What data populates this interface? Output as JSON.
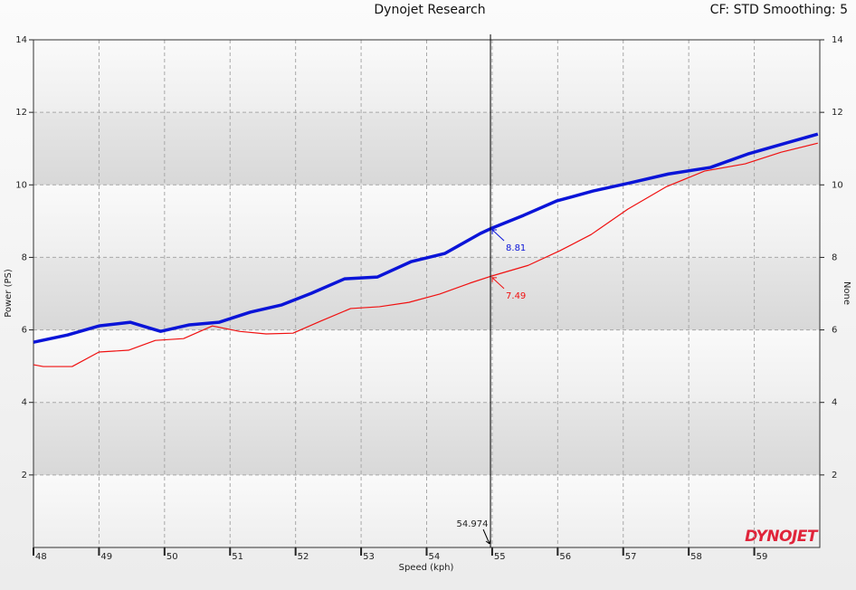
{
  "chart_data": {
    "type": "line",
    "title": "Dynojet Research",
    "header_right": "CF: STD Smoothing: 5",
    "x_label": "Speed (kph)",
    "y_label": "Power (PS)",
    "y2_label": "None",
    "logo": "DYNOJET",
    "xlim": [
      48,
      60
    ],
    "xticks": [
      48,
      49,
      50,
      51,
      52,
      53,
      54,
      55,
      56,
      57,
      58,
      59
    ],
    "ylim": [
      0,
      14
    ],
    "yticks": [
      2,
      4,
      6,
      8,
      10,
      12,
      14
    ],
    "y2lim": [
      0,
      14
    ],
    "y2ticks": [
      2,
      4,
      6,
      8,
      10,
      12,
      14
    ],
    "grid": true,
    "series": [
      {
        "color": "#0a14d8",
        "width": 3.5,
        "x": [
          48.0,
          48.52,
          49.0,
          49.48,
          49.94,
          50.38,
          50.83,
          51.31,
          51.79,
          52.24,
          52.75,
          53.25,
          53.76,
          54.28,
          54.82,
          55.0,
          55.48,
          55.99,
          56.54,
          57.09,
          57.69,
          58.33,
          58.9,
          59.48,
          59.97
        ],
        "values": [
          5.66,
          5.86,
          6.11,
          6.21,
          5.96,
          6.14,
          6.21,
          6.49,
          6.69,
          7.01,
          7.41,
          7.46,
          7.88,
          8.11,
          8.66,
          8.81,
          9.16,
          9.56,
          9.83,
          10.05,
          10.3,
          10.48,
          10.85,
          11.15,
          11.4
        ]
      },
      {
        "color": "#f01010",
        "width": 1.2,
        "x": [
          48.0,
          48.15,
          48.59,
          49.0,
          49.45,
          49.86,
          50.29,
          50.73,
          51.14,
          51.55,
          51.96,
          52.38,
          52.84,
          53.28,
          53.73,
          54.2,
          54.66,
          55.0,
          55.55,
          56.03,
          56.51,
          57.07,
          57.66,
          58.24,
          58.86,
          59.41,
          59.97
        ],
        "values": [
          5.04,
          4.99,
          4.99,
          5.39,
          5.44,
          5.71,
          5.76,
          6.11,
          5.96,
          5.89,
          5.91,
          6.24,
          6.59,
          6.64,
          6.76,
          6.99,
          7.29,
          7.49,
          7.78,
          8.18,
          8.63,
          9.33,
          9.95,
          10.38,
          10.58,
          10.9,
          11.15
        ]
      }
    ],
    "cursor": {
      "x": 54.974,
      "readouts": [
        8.81,
        7.49
      ]
    }
  }
}
